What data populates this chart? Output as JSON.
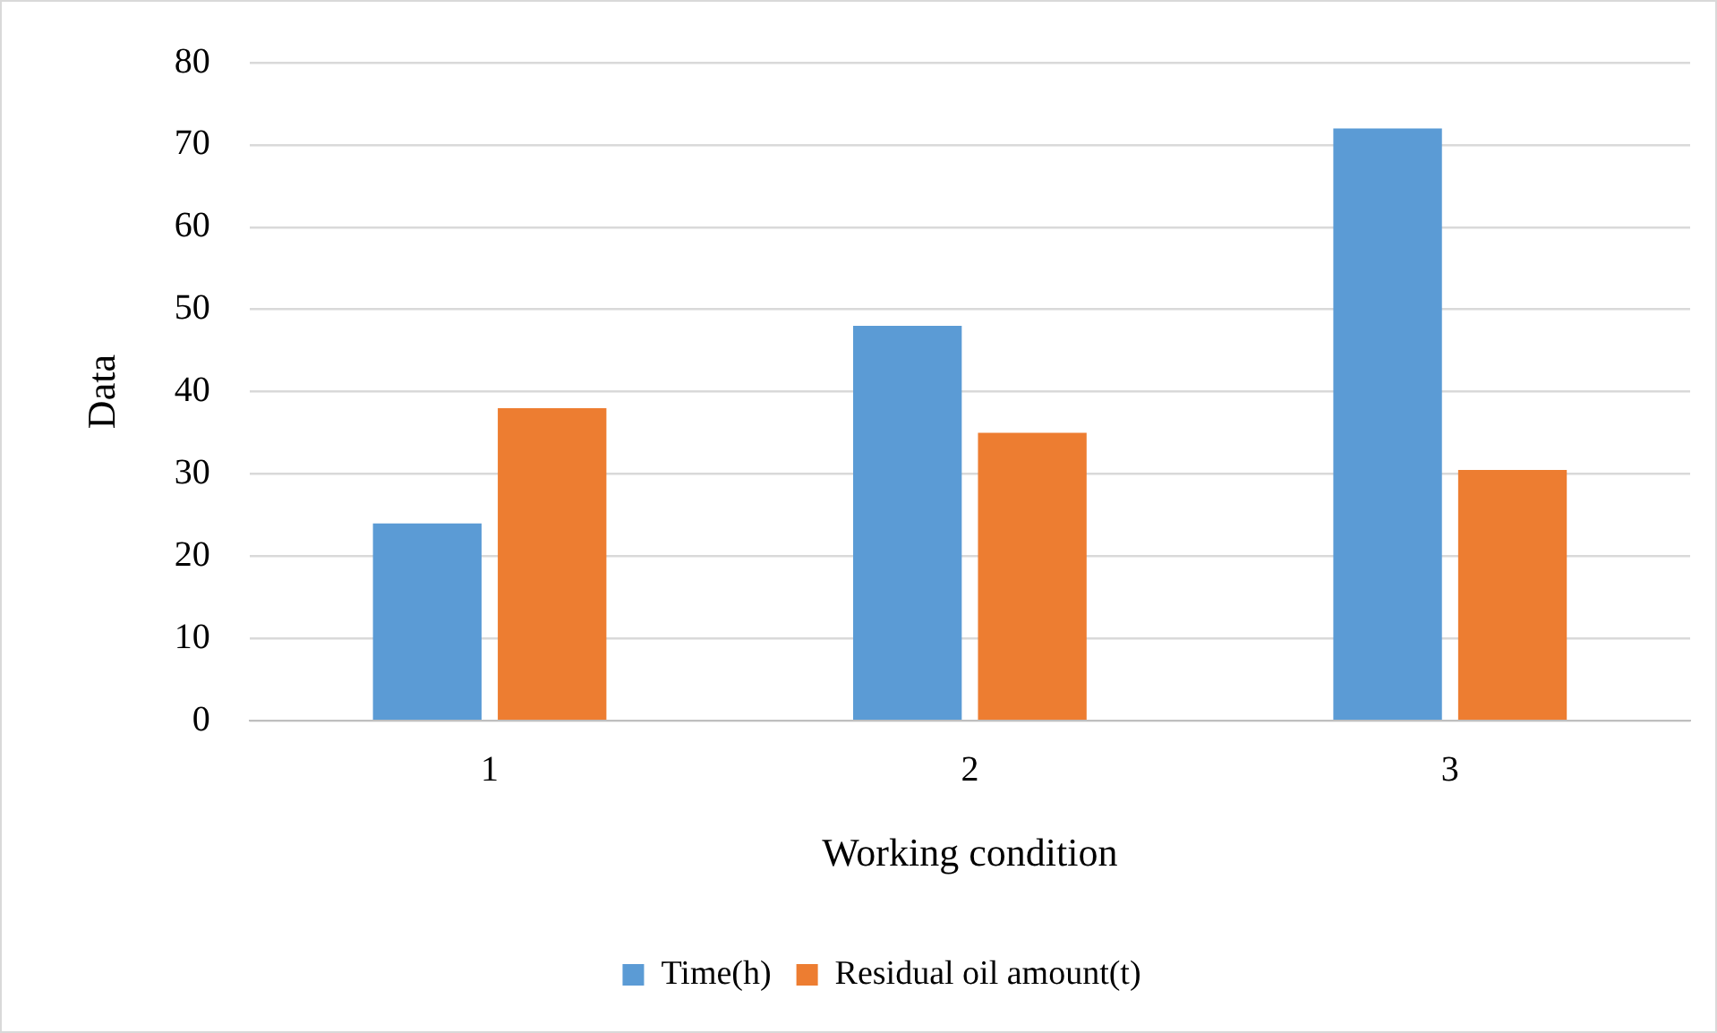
{
  "chart_data": {
    "type": "bar",
    "xlabel": "Working condition",
    "ylabel": "Data",
    "categories": [
      "1",
      "2",
      "3"
    ],
    "series": [
      {
        "name": "Time(h)",
        "color": "#5b9bd5",
        "values": [
          24,
          48,
          72
        ]
      },
      {
        "name": "Residual oil amount(t)",
        "color": "#ed7d31",
        "values": [
          38,
          35,
          30.5
        ]
      }
    ],
    "ylim": [
      0,
      80
    ],
    "yticks": [
      0,
      10,
      20,
      30,
      40,
      50,
      60,
      70,
      80
    ],
    "grid": "y",
    "legend": "bottom"
  }
}
